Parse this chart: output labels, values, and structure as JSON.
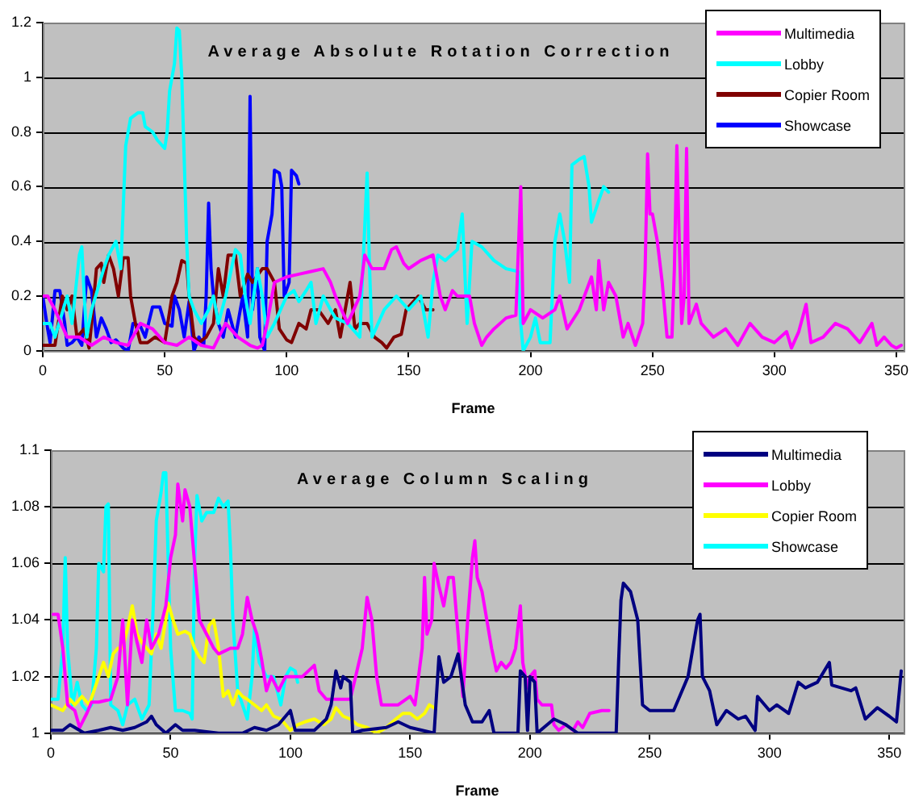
{
  "chart_data": [
    {
      "type": "line",
      "title": "Average Absolute Rotation Correction",
      "xlabel": "Frame",
      "xlim": [
        0,
        353
      ],
      "xticks": [
        0,
        50,
        100,
        150,
        200,
        250,
        300,
        350
      ],
      "ylim": [
        0,
        1.2
      ],
      "yticks": [
        0,
        0.2,
        0.4,
        0.6,
        0.8,
        1,
        1.2
      ],
      "grid": "y",
      "legend": "top right",
      "marker": "none",
      "line_style": "solid",
      "series": [
        {
          "name": "Multimedia",
          "color": "#ff00ff",
          "x": [
            0,
            2,
            5,
            10,
            15,
            20,
            25,
            30,
            35,
            40,
            45,
            50,
            55,
            60,
            65,
            70,
            75,
            80,
            85,
            88,
            90,
            92,
            95,
            100,
            105,
            110,
            115,
            118,
            120,
            125,
            130,
            132,
            135,
            140,
            143,
            145,
            148,
            150,
            155,
            160,
            163,
            165,
            168,
            170,
            175,
            177,
            180,
            182,
            185,
            190,
            194,
            196,
            197,
            200,
            205,
            210,
            212,
            215,
            220,
            225,
            227,
            228,
            230,
            232,
            235,
            238,
            240,
            243,
            246,
            247,
            248,
            249,
            250,
            252,
            254,
            256,
            258,
            259,
            260,
            261,
            262,
            263,
            264,
            265,
            268,
            270,
            275,
            280,
            285,
            290,
            295,
            300,
            305,
            307,
            310,
            313,
            315,
            320,
            325,
            330,
            335,
            340,
            342,
            345,
            348,
            350,
            352
          ],
          "values": [
            0.2,
            0.2,
            0.15,
            0.05,
            0.05,
            0.02,
            0.05,
            0.03,
            0.02,
            0.1,
            0.08,
            0.03,
            0.02,
            0.05,
            0.02,
            0.01,
            0.1,
            0.05,
            0.02,
            0.01,
            0.02,
            0.1,
            0.25,
            0.27,
            0.28,
            0.29,
            0.3,
            0.25,
            0.2,
            0.1,
            0.2,
            0.35,
            0.3,
            0.3,
            0.37,
            0.38,
            0.32,
            0.3,
            0.33,
            0.35,
            0.2,
            0.15,
            0.22,
            0.2,
            0.2,
            0.1,
            0.02,
            0.05,
            0.08,
            0.12,
            0.13,
            0.6,
            0.1,
            0.15,
            0.12,
            0.15,
            0.2,
            0.08,
            0.15,
            0.27,
            0.15,
            0.33,
            0.15,
            0.25,
            0.2,
            0.05,
            0.1,
            0.02,
            0.1,
            0.3,
            0.72,
            0.5,
            0.5,
            0.4,
            0.25,
            0.05,
            0.05,
            0.3,
            0.75,
            0.4,
            0.1,
            0.2,
            0.74,
            0.1,
            0.17,
            0.1,
            0.05,
            0.08,
            0.02,
            0.1,
            0.05,
            0.03,
            0.07,
            0.01,
            0.07,
            0.17,
            0.03,
            0.05,
            0.1,
            0.08,
            0.03,
            0.1,
            0.02,
            0.05,
            0.02,
            0.01,
            0.02
          ]
        },
        {
          "name": "Lobby",
          "color": "#00ffff",
          "x": [
            0,
            3,
            5,
            10,
            12,
            15,
            16,
            17,
            18,
            20,
            25,
            27,
            30,
            32,
            34,
            36,
            39,
            41,
            42,
            45,
            47,
            50,
            51,
            52,
            54,
            55,
            56,
            57,
            58,
            59,
            60,
            62,
            65,
            68,
            70,
            72,
            75,
            79,
            81,
            83,
            85,
            88,
            90,
            92,
            95,
            100,
            103,
            105,
            108,
            110,
            112,
            115,
            118,
            120,
            125,
            130,
            132,
            133,
            134,
            135,
            140,
            145,
            150,
            155,
            158,
            160,
            162,
            165,
            170,
            172,
            174,
            176,
            180,
            185,
            190,
            195,
            196,
            197,
            200,
            202,
            204,
            208,
            210,
            212,
            214,
            216,
            217,
            220,
            222,
            224,
            225,
            228,
            230,
            232
          ],
          "values": [
            0.1,
            0.1,
            0.05,
            0.2,
            0.1,
            0.35,
            0.38,
            0.2,
            0.05,
            0.15,
            0.3,
            0.35,
            0.4,
            0.3,
            0.75,
            0.85,
            0.87,
            0.87,
            0.82,
            0.8,
            0.77,
            0.74,
            0.8,
            0.95,
            1.05,
            1.18,
            1.17,
            1,
            0.7,
            0.4,
            0.2,
            0.15,
            0.1,
            0.15,
            0.2,
            0.1,
            0.2,
            0.37,
            0.35,
            0.2,
            0.1,
            0.3,
            0.2,
            0.05,
            0.1,
            0.2,
            0.22,
            0.18,
            0.22,
            0.25,
            0.1,
            0.2,
            0.15,
            0.12,
            0.1,
            0.05,
            0.45,
            0.65,
            0.3,
            0.05,
            0.15,
            0.2,
            0.15,
            0.2,
            0.05,
            0.25,
            0.35,
            0.33,
            0.37,
            0.5,
            0.1,
            0.4,
            0.38,
            0.33,
            0.3,
            0.29,
            0.1,
            0,
            0.05,
            0.12,
            0.03,
            0.03,
            0.4,
            0.5,
            0.4,
            0.25,
            0.68,
            0.7,
            0.71,
            0.6,
            0.47,
            0.55,
            0.6,
            0.58
          ]
        },
        {
          "name": "Copier Room",
          "color": "#800000",
          "x": [
            0,
            5,
            8,
            10,
            12,
            14,
            17,
            19,
            20,
            22,
            24,
            25,
            27,
            29,
            31,
            33,
            35,
            36,
            38,
            40,
            43,
            46,
            50,
            53,
            55,
            57,
            59,
            60,
            62,
            64,
            67,
            70,
            72,
            74,
            76,
            79,
            81,
            84,
            86,
            90,
            92,
            95,
            97,
            100,
            102,
            105,
            108,
            110,
            113,
            117,
            120,
            122,
            124,
            126,
            128,
            130,
            133,
            136,
            139,
            141,
            144,
            147,
            149,
            152,
            154,
            157,
            160
          ],
          "values": [
            0.02,
            0.02,
            0.2,
            0.15,
            0.2,
            0.05,
            0.08,
            0.01,
            0.1,
            0.3,
            0.32,
            0.25,
            0.35,
            0.3,
            0.2,
            0.34,
            0.34,
            0.2,
            0.1,
            0.03,
            0.03,
            0.05,
            0.03,
            0.2,
            0.25,
            0.33,
            0.32,
            0.2,
            0.05,
            0.03,
            0.05,
            0.1,
            0.3,
            0.2,
            0.35,
            0.35,
            0.2,
            0.28,
            0.25,
            0.3,
            0.3,
            0.25,
            0.08,
            0.04,
            0.03,
            0.1,
            0.08,
            0.15,
            0.15,
            0.1,
            0.15,
            0.05,
            0.15,
            0.25,
            0.08,
            0.1,
            0.1,
            0.05,
            0.03,
            0.01,
            0.05,
            0.06,
            0.15,
            0.18,
            0.2,
            0.15,
            0.15
          ]
        },
        {
          "name": "Showcase",
          "color": "#0000ff",
          "x": [
            0,
            2,
            3,
            5,
            7,
            9,
            10,
            12,
            14,
            16,
            18,
            20,
            22,
            24,
            26,
            28,
            30,
            33,
            35,
            37,
            40,
            42,
            45,
            48,
            50,
            53,
            54,
            56,
            58,
            60,
            62,
            64,
            66,
            67,
            68,
            69,
            70,
            72,
            74,
            76,
            79,
            82,
            84,
            85,
            86,
            88,
            89,
            91,
            92,
            94,
            95,
            97,
            98,
            99,
            101,
            102,
            104,
            105
          ],
          "values": [
            0.2,
            0.08,
            0.03,
            0.22,
            0.22,
            0.1,
            0.02,
            0.03,
            0.05,
            0.02,
            0.27,
            0.22,
            0.05,
            0.12,
            0.08,
            0.03,
            0.04,
            0.01,
            0,
            0.1,
            0.09,
            0.05,
            0.16,
            0.16,
            0.1,
            0.09,
            0.2,
            0.15,
            0.05,
            0.18,
            0,
            0.05,
            0.02,
            0.2,
            0.54,
            0.3,
            0.2,
            0.1,
            0.05,
            0.15,
            0.05,
            0.2,
            0.05,
            0.93,
            0.15,
            0.3,
            0.05,
            0,
            0.4,
            0.5,
            0.66,
            0.65,
            0.6,
            0.2,
            0.25,
            0.66,
            0.64,
            0.61
          ]
        }
      ]
    },
    {
      "type": "line",
      "title": "Average Column Scaling",
      "xlabel": "Frame",
      "xlim": [
        0,
        356
      ],
      "xticks": [
        0,
        50,
        100,
        150,
        200,
        250,
        300,
        350
      ],
      "ylim": [
        1,
        1.1
      ],
      "yticks": [
        1,
        1.02,
        1.04,
        1.06,
        1.08,
        1.1
      ],
      "grid": "y",
      "legend": "top right",
      "marker": "none",
      "line_style": "solid",
      "series": [
        {
          "name": "Multimedia",
          "color": "#000080",
          "x": [
            0,
            5,
            8,
            10,
            14,
            20,
            25,
            30,
            35,
            40,
            42,
            44,
            48,
            52,
            55,
            60,
            70,
            80,
            85,
            90,
            95,
            100,
            102,
            110,
            115,
            117,
            119,
            121,
            122,
            125,
            126,
            130,
            140,
            145,
            150,
            155,
            160,
            162,
            164,
            167,
            170,
            173,
            176,
            180,
            183,
            185,
            190,
            195,
            196,
            198,
            199,
            200,
            202,
            203,
            210,
            215,
            220,
            236,
            237,
            238,
            239,
            242,
            245,
            247,
            250,
            260,
            262,
            266,
            268,
            270,
            271,
            272,
            275,
            278,
            282,
            287,
            290,
            294,
            295,
            300,
            303,
            308,
            312,
            315,
            320,
            325,
            326,
            330,
            334,
            336,
            340,
            345,
            350,
            353,
            355
          ],
          "values": [
            1.001,
            1.001,
            1.003,
            1.002,
            1,
            1.001,
            1.002,
            1.001,
            1.002,
            1.004,
            1.006,
            1.003,
            1,
            1.003,
            1.001,
            1.001,
            1,
            1,
            1.002,
            1.001,
            1.003,
            1.008,
            1.001,
            1.001,
            1.005,
            1.01,
            1.022,
            1.016,
            1.02,
            1.018,
            1,
            1.001,
            1.002,
            1.004,
            1.002,
            1.001,
            1,
            1.027,
            1.018,
            1.02,
            1.028,
            1.01,
            1.004,
            1.004,
            1.008,
            1,
            1,
            1,
            1.022,
            1.02,
            1.001,
            1.02,
            1.018,
            1,
            1.005,
            1.003,
            1,
            1,
            1.025,
            1.047,
            1.053,
            1.05,
            1.04,
            1.01,
            1.008,
            1.008,
            1.012,
            1.02,
            1.03,
            1.04,
            1.042,
            1.02,
            1.015,
            1.003,
            1.008,
            1.005,
            1.006,
            1.001,
            1.013,
            1.008,
            1.01,
            1.007,
            1.018,
            1.016,
            1.018,
            1.025,
            1.017,
            1.016,
            1.015,
            1.016,
            1.005,
            1.009,
            1.006,
            1.004,
            1.022
          ]
        },
        {
          "name": "Lobby",
          "color": "#ff00ff",
          "x": [
            1,
            3,
            5,
            7,
            10,
            12,
            15,
            17,
            20,
            25,
            28,
            30,
            32,
            34,
            36,
            38,
            40,
            42,
            45,
            48,
            50,
            52,
            53,
            55,
            56,
            58,
            60,
            62,
            65,
            68,
            70,
            75,
            78,
            80,
            82,
            84,
            86,
            88,
            90,
            92,
            95,
            98,
            100,
            105,
            110,
            112,
            115,
            120,
            125,
            130,
            132,
            134,
            136,
            138,
            140,
            145,
            150,
            152,
            155,
            156,
            157,
            159,
            160,
            162,
            164,
            166,
            168,
            170,
            172,
            174,
            176,
            177,
            178,
            180,
            182,
            184,
            186,
            188,
            190,
            192,
            194,
            196,
            197,
            199,
            200,
            202,
            203,
            205,
            209,
            210,
            212,
            215,
            218,
            220,
            222,
            225,
            230,
            233
          ],
          "values": [
            1.042,
            1.042,
            1.03,
            1.01,
            1.008,
            1.002,
            1.007,
            1.011,
            1.011,
            1.012,
            1.02,
            1.04,
            1.01,
            1.04,
            1.032,
            1.025,
            1.04,
            1.03,
            1.035,
            1.045,
            1.062,
            1.07,
            1.088,
            1.075,
            1.086,
            1.08,
            1.06,
            1.04,
            1.035,
            1.03,
            1.028,
            1.03,
            1.03,
            1.035,
            1.048,
            1.04,
            1.035,
            1.026,
            1.015,
            1.02,
            1.015,
            1.02,
            1.02,
            1.02,
            1.024,
            1.015,
            1.012,
            1.012,
            1.012,
            1.03,
            1.048,
            1.04,
            1.02,
            1.01,
            1.01,
            1.01,
            1.013,
            1.01,
            1.03,
            1.055,
            1.035,
            1.04,
            1.06,
            1.052,
            1.045,
            1.055,
            1.055,
            1.035,
            1.013,
            1.04,
            1.062,
            1.068,
            1.055,
            1.05,
            1.04,
            1.03,
            1.022,
            1.025,
            1.023,
            1.025,
            1.03,
            1.045,
            1.025,
            1.016,
            1.02,
            1.022,
            1.012,
            1.01,
            1.01,
            1.003,
            1.001,
            1.003,
            1.001,
            1.004,
            1.002,
            1.007,
            1.008,
            1.008
          ]
        },
        {
          "name": "Copier Room",
          "color": "#ffff00",
          "x": [
            0,
            5,
            8,
            10,
            13,
            16,
            18,
            20,
            22,
            24,
            26,
            28,
            30,
            32,
            34,
            36,
            38,
            40,
            42,
            44,
            46,
            48,
            49,
            51,
            53,
            56,
            58,
            60,
            62,
            64,
            66,
            68,
            70,
            72,
            74,
            76,
            78,
            80,
            82,
            85,
            88,
            90,
            93,
            96,
            100,
            103,
            106,
            110,
            114,
            117,
            119,
            122,
            125,
            128,
            132,
            136,
            140,
            144,
            147,
            150,
            153,
            156,
            158,
            160
          ],
          "values": [
            1.01,
            1.008,
            1.012,
            1.01,
            1.013,
            1.01,
            1.015,
            1.02,
            1.025,
            1.02,
            1.028,
            1.03,
            1.03,
            1.037,
            1.045,
            1.035,
            1.032,
            1.03,
            1.028,
            1.035,
            1.03,
            1.04,
            1.046,
            1.04,
            1.035,
            1.036,
            1.035,
            1.03,
            1.027,
            1.025,
            1.038,
            1.04,
            1.03,
            1.013,
            1.015,
            1.01,
            1.015,
            1.013,
            1.012,
            1.01,
            1.008,
            1.01,
            1.006,
            1.005,
            1.001,
            1.003,
            1.004,
            1.005,
            1.003,
            1.005,
            1.009,
            1.006,
            1.005,
            1.003,
            1.002,
            1,
            1.002,
            1.005,
            1.007,
            1.007,
            1.005,
            1.007,
            1.01,
            1.009
          ]
        },
        {
          "name": "Showcase",
          "color": "#00ffff",
          "x": [
            0,
            3,
            5,
            6,
            7,
            9,
            11,
            13,
            15,
            17,
            19,
            20,
            22,
            23,
            24,
            25,
            28,
            30,
            32,
            35,
            38,
            41,
            43,
            44,
            46,
            47,
            48,
            49,
            50,
            52,
            55,
            58,
            59,
            60,
            61,
            63,
            65,
            68,
            70,
            72,
            74,
            75,
            76,
            78,
            80,
            82,
            84,
            85,
            87,
            90,
            93,
            96,
            98,
            100,
            102,
            103
          ],
          "values": [
            1.012,
            1.012,
            1.03,
            1.062,
            1.03,
            1.01,
            1.018,
            1.01,
            1.008,
            1.01,
            1.03,
            1.06,
            1.057,
            1.08,
            1.081,
            1.01,
            1.008,
            1.003,
            1.01,
            1.012,
            1.005,
            1.01,
            1.05,
            1.075,
            1.085,
            1.092,
            1.092,
            1.06,
            1.03,
            1.008,
            1.008,
            1.007,
            1.005,
            1.06,
            1.084,
            1.075,
            1.078,
            1.078,
            1.083,
            1.08,
            1.082,
            1.065,
            1.04,
            1.015,
            1.01,
            1.005,
            1.02,
            1.037,
            1.025,
            1.02,
            1.02,
            1.01,
            1.02,
            1.023,
            1.022,
            1.018
          ]
        }
      ]
    }
  ]
}
